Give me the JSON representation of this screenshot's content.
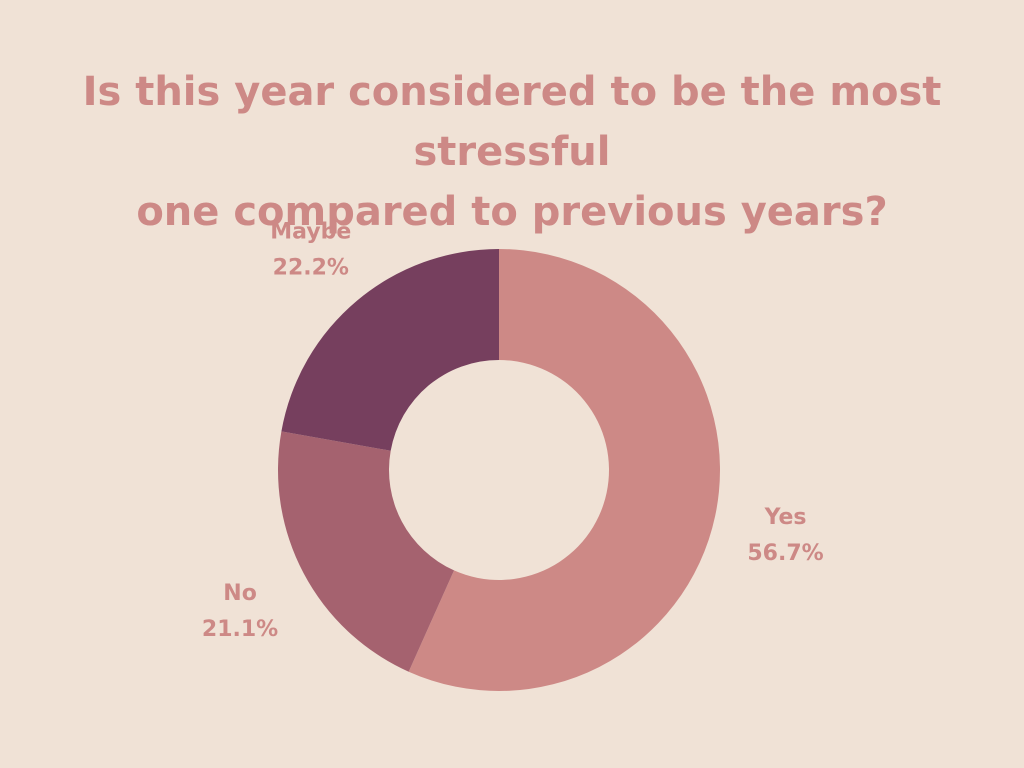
{
  "title_lines": [
    "Is this year considered to be the most stressful",
    "one compared to previous years?"
  ],
  "colors": {
    "background": "#f0e2d6",
    "text": "#cd8986"
  },
  "chart_data": {
    "type": "pie",
    "donut": true,
    "title": "Is this year considered to be the most stressful one compared to previous years?",
    "slices": [
      {
        "label": "Yes",
        "value": 56.7,
        "percent_label": "56.7%",
        "color": "#cd8986"
      },
      {
        "label": "No",
        "value": 21.1,
        "percent_label": "21.1%",
        "color": "#a5626f"
      },
      {
        "label": "Maybe",
        "value": 22.2,
        "percent_label": "22.2%",
        "color": "#763f5e"
      }
    ],
    "start": "top",
    "direction": "clockwise",
    "labels": "outside"
  }
}
